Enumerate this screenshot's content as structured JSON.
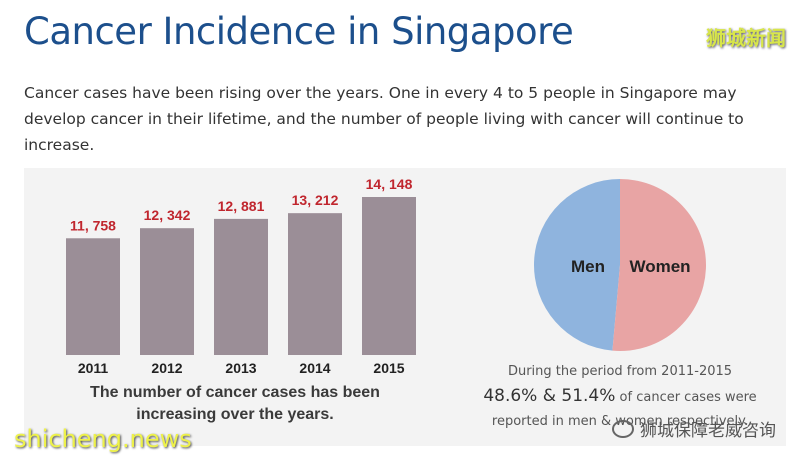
{
  "header": {
    "title": "Cancer Incidence in Singapore",
    "watermark": "狮城新闻"
  },
  "intro": "Cancer cases have been rising over the years. One in every 4 to 5 people in Singapore may develop cancer in their lifetime, and the number of people living with cancer will continue to increase.",
  "chart_data": [
    {
      "type": "bar",
      "categories": [
        "2011",
        "2012",
        "2013",
        "2014",
        "2015"
      ],
      "values": [
        11758,
        12342,
        12881,
        13212,
        14148
      ],
      "value_labels": [
        "11, 758",
        "12, 342",
        "12, 881",
        "13, 212",
        "14, 148"
      ],
      "caption": "The number of cancer cases has been increasing over the years.",
      "title": "",
      "xlabel": "",
      "ylabel": "",
      "grid": false,
      "bar_color": "#9b8e97",
      "label_color": "#c0262e"
    },
    {
      "type": "pie",
      "labels": [
        "Men",
        "Women"
      ],
      "values": [
        48.6,
        51.4
      ],
      "colors": [
        "#8fb4de",
        "#e8a4a4"
      ],
      "title": "",
      "legend": "none"
    }
  ],
  "pie_caption": {
    "line1": "During the period from 2011-2015",
    "pct_text": "48.6% & 51.4%",
    "line2_rest": "of cancer cases were",
    "line3": "reported in men & women respectively."
  },
  "watermarks": {
    "site": "shicheng.news",
    "account": "狮城保障老威咨询"
  }
}
